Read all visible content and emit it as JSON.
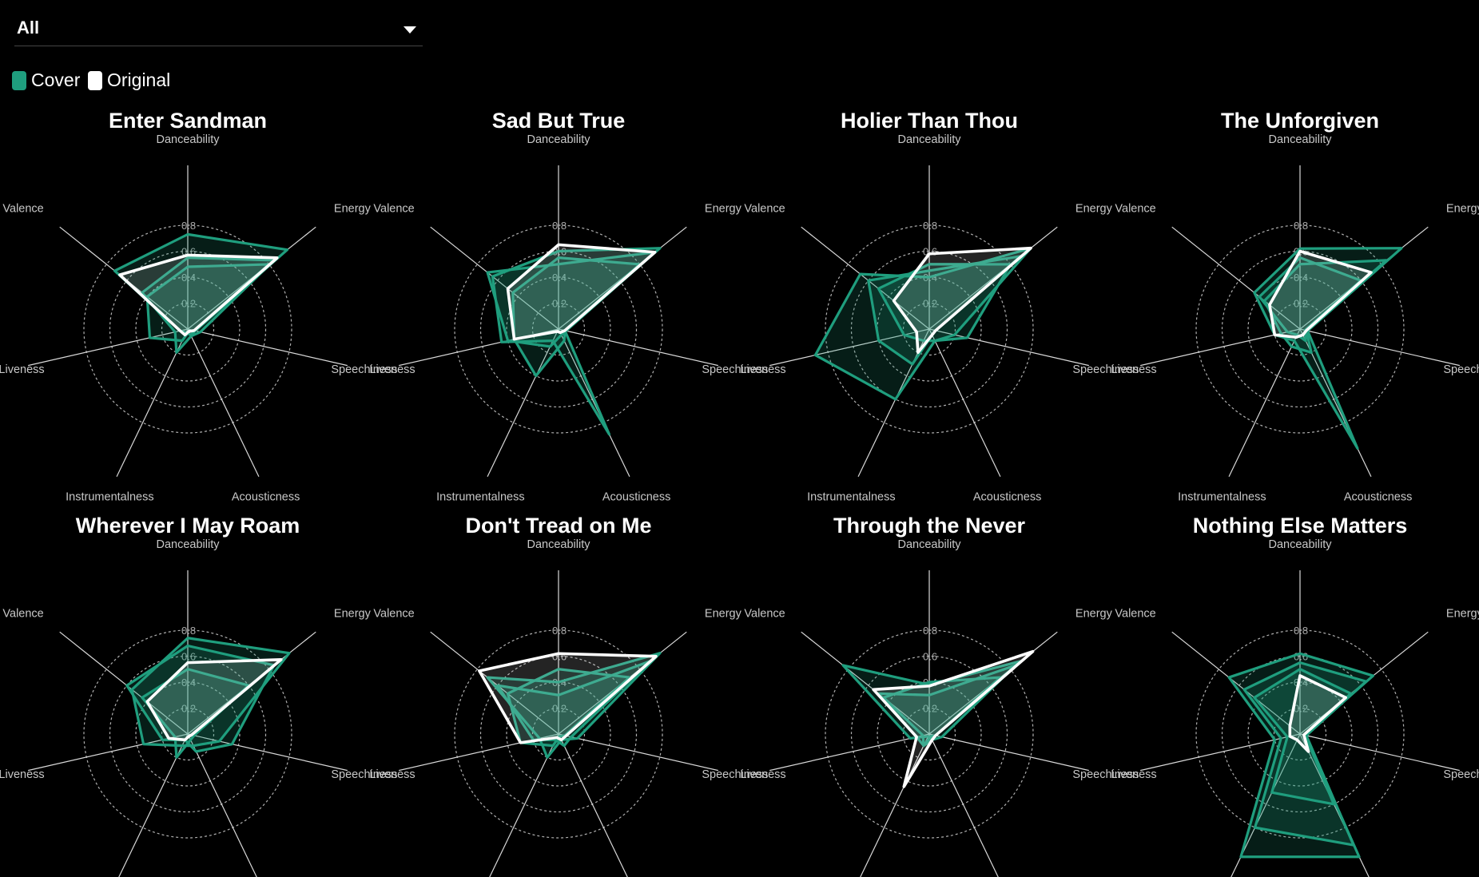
{
  "filter": {
    "selected": "All"
  },
  "legend": [
    {
      "label": "Cover",
      "color": "#1f9e7e"
    },
    {
      "label": "Original",
      "color": "#ffffff"
    }
  ],
  "colors": {
    "cover": "#1f9e7e",
    "original": "#ffffff",
    "grid": "#cccccc",
    "axis_text": "#c8c8c8"
  },
  "chart_data": {
    "type": "radar",
    "axes": [
      "Danceability",
      "Energy",
      "Speechiness",
      "Acousticness",
      "Instrumentalness",
      "Liveness",
      "Valence"
    ],
    "rlim": [
      0,
      0.8
    ],
    "ticks": [
      0.2,
      0.4,
      0.6,
      0.8
    ],
    "grid": true,
    "charts": [
      {
        "title": "Enter Sandman",
        "original": [
          0.57,
          0.88,
          0.05,
          0.02,
          0.05,
          0.06,
          0.67
        ],
        "covers": [
          [
            0.73,
            0.98,
            0.06,
            0.05,
            0.03,
            0.06,
            0.72
          ],
          [
            0.55,
            0.85,
            0.1,
            0.06,
            0.2,
            0.1,
            0.45
          ],
          [
            0.48,
            0.8,
            0.05,
            0.02,
            0.1,
            0.3,
            0.4
          ]
        ]
      },
      {
        "title": "Sad But True",
        "original": [
          0.65,
          0.95,
          0.05,
          0.03,
          0.02,
          0.35,
          0.5
        ],
        "covers": [
          [
            0.6,
            1.0,
            0.05,
            0.9,
            0.1,
            0.45,
            0.65
          ],
          [
            0.5,
            0.95,
            0.06,
            0.05,
            0.15,
            0.4,
            0.7
          ],
          [
            0.55,
            0.8,
            0.05,
            0.1,
            0.4,
            0.35,
            0.45
          ]
        ]
      },
      {
        "title": "Holier Than Thou",
        "original": [
          0.58,
          1.0,
          0.05,
          0.05,
          0.2,
          0.1,
          0.35
        ],
        "covers": [
          [
            0.4,
            1.0,
            0.2,
            0.1,
            0.6,
            0.9,
            0.68
          ],
          [
            0.45,
            0.9,
            0.05,
            0.05,
            0.3,
            0.4,
            0.6
          ],
          [
            0.5,
            0.8,
            0.3,
            0.1,
            0.1,
            0.2,
            0.5
          ]
        ]
      },
      {
        "title": "The Unforgiven",
        "original": [
          0.6,
          0.7,
          0.05,
          0.05,
          0.07,
          0.2,
          0.3
        ],
        "covers": [
          [
            0.62,
            1.0,
            0.06,
            1.02,
            0.1,
            0.2,
            0.45
          ],
          [
            0.5,
            0.85,
            0.05,
            0.2,
            0.15,
            0.15,
            0.35
          ],
          [
            0.55,
            0.6,
            0.04,
            0.1,
            0.05,
            0.1,
            0.4
          ]
        ]
      },
      {
        "title": "Wherever I May Roam",
        "original": [
          0.55,
          0.92,
          0.03,
          0.02,
          0.05,
          0.15,
          0.4
        ],
        "covers": [
          [
            0.74,
            1.0,
            0.25,
            0.1,
            0.1,
            0.35,
            0.55
          ],
          [
            0.68,
            0.85,
            0.35,
            0.15,
            0.05,
            0.2,
            0.6
          ],
          [
            0.5,
            0.6,
            0.05,
            0.05,
            0.2,
            0.1,
            0.45
          ]
        ]
      },
      {
        "title": "Don't Tread on Me",
        "original": [
          0.62,
          0.96,
          0.06,
          0.05,
          0.03,
          0.3,
          0.78
        ],
        "covers": [
          [
            0.4,
            1.0,
            0.15,
            0.05,
            0.2,
            0.15,
            0.7
          ],
          [
            0.3,
            0.9,
            0.1,
            0.1,
            0.05,
            0.2,
            0.6
          ],
          [
            0.5,
            0.7,
            0.05,
            0.02,
            0.1,
            0.3,
            0.5
          ]
        ]
      },
      {
        "title": "Through the Never",
        "original": [
          0.37,
          1.02,
          0.05,
          0.05,
          0.45,
          0.1,
          0.55
        ],
        "covers": [
          [
            0.38,
            0.9,
            0.05,
            0.05,
            0.02,
            0.15,
            0.85
          ],
          [
            0.3,
            0.85,
            0.1,
            0.05,
            0.1,
            0.1,
            0.5
          ],
          [
            0.4,
            0.7,
            0.05,
            0.02,
            0.1,
            0.05,
            0.45
          ]
        ]
      },
      {
        "title": "Nothing Else Matters",
        "original": [
          0.45,
          0.45,
          0.03,
          0.15,
          0.05,
          0.08,
          0.1
        ],
        "covers": [
          [
            0.62,
            0.72,
            0.04,
            1.05,
            1.05,
            0.2,
            0.7
          ],
          [
            0.55,
            0.65,
            0.05,
            0.95,
            0.8,
            0.15,
            0.55
          ],
          [
            0.5,
            0.5,
            0.04,
            0.6,
            0.5,
            0.1,
            0.45
          ]
        ]
      }
    ]
  }
}
